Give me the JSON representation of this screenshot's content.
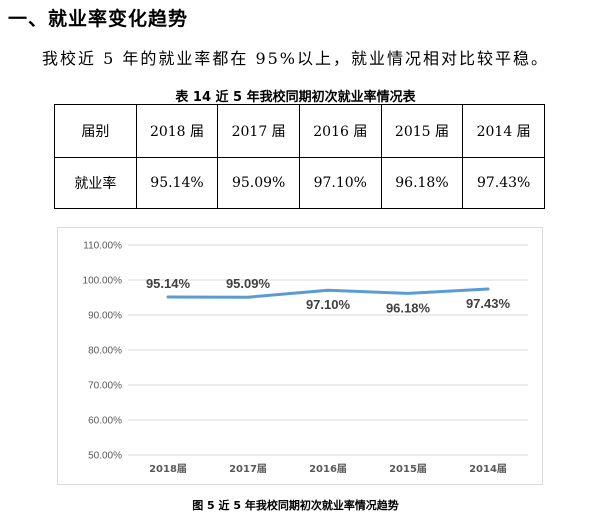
{
  "section": {
    "heading": "一、就业率变化趋势",
    "paragraph": "我校近 5 年的就业率都在 95%以上，就业情况相对比较平稳。"
  },
  "table": {
    "caption": "表  14   近 5 年我校同期初次就业率情况表",
    "headers": [
      "届别",
      "2018 届",
      "2017 届",
      "2016 届",
      "2015 届",
      "2014 届"
    ],
    "row": [
      "就业率",
      "95.14%",
      "95.09%",
      "97.10%",
      "96.18%",
      "97.43%"
    ]
  },
  "chart_data": {
    "type": "line",
    "categories": [
      "2018届",
      "2017届",
      "2016届",
      "2015届",
      "2014届"
    ],
    "series": [
      {
        "values": [
          95.14,
          95.09,
          97.1,
          96.18,
          97.43
        ]
      }
    ],
    "data_labels": [
      "95.14%",
      "95.09%",
      "97.10%",
      "96.18%",
      "97.43%"
    ],
    "ylim": [
      50,
      110
    ],
    "yticks": [
      50,
      60,
      70,
      80,
      90,
      100,
      110
    ],
    "ytick_labels": [
      "50.00%",
      "60.00%",
      "70.00%",
      "80.00%",
      "90.00%",
      "100.00%",
      "110.00%"
    ],
    "grid": true,
    "colors": {
      "line": "#5b9bd5",
      "grid": "#d9d9d9",
      "axis_text": "#595959"
    },
    "title": "",
    "xlabel": "",
    "ylabel": ""
  },
  "figure": {
    "caption": "图  5    近 5 年我校同期初次就业率情况趋势"
  }
}
